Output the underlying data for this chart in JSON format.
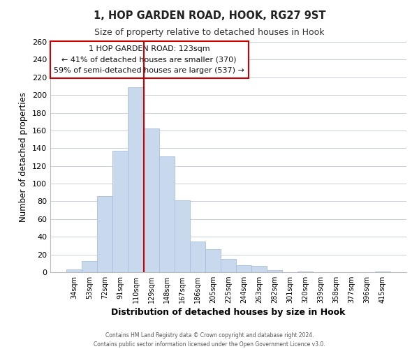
{
  "title_line1": "1, HOP GARDEN ROAD, HOOK, RG27 9ST",
  "title_line2": "Size of property relative to detached houses in Hook",
  "xlabel": "Distribution of detached houses by size in Hook",
  "ylabel": "Number of detached properties",
  "categories": [
    "34sqm",
    "53sqm",
    "72sqm",
    "91sqm",
    "110sqm",
    "129sqm",
    "148sqm",
    "167sqm",
    "186sqm",
    "205sqm",
    "225sqm",
    "244sqm",
    "263sqm",
    "282sqm",
    "301sqm",
    "320sqm",
    "339sqm",
    "358sqm",
    "377sqm",
    "396sqm",
    "415sqm"
  ],
  "values": [
    3,
    13,
    86,
    137,
    209,
    162,
    131,
    81,
    35,
    26,
    15,
    8,
    7,
    2,
    0,
    1,
    0,
    0,
    0,
    0,
    1
  ],
  "bar_color": "#c8d9ee",
  "bar_edge_color": "#a8c0dc",
  "vline_color": "#cc0000",
  "vline_x": 4.5,
  "annotation_text_line1": "1 HOP GARDEN ROAD: 123sqm",
  "annotation_text_line2": "← 41% of detached houses are smaller (370)",
  "annotation_text_line3": "59% of semi-detached houses are larger (537) →",
  "annotation_box_color": "white",
  "annotation_box_edge_color": "#cc0000",
  "ylim": [
    0,
    260
  ],
  "yticks": [
    0,
    20,
    40,
    60,
    80,
    100,
    120,
    140,
    160,
    180,
    200,
    220,
    240,
    260
  ],
  "footer_line1": "Contains HM Land Registry data © Crown copyright and database right 2024.",
  "footer_line2": "Contains public sector information licensed under the Open Government Licence v3.0.",
  "background_color": "#ffffff",
  "grid_color": "#c8d0dc"
}
